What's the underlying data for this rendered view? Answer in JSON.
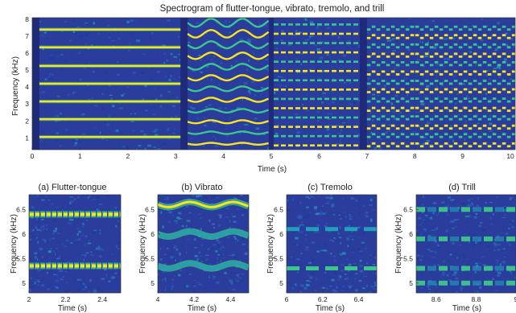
{
  "chart_data": [
    {
      "type": "heatmap",
      "title": "Spectrogram of flutter-tongue, vibrato, tremolo, and trill",
      "xlabel": "Time (s)",
      "ylabel": "Frequency (kHz)",
      "xlim": [
        0,
        10.1
      ],
      "ylim": [
        0.3,
        8.1
      ],
      "xticks": [
        0,
        1,
        2,
        3,
        4,
        5,
        6,
        7,
        8,
        9,
        10
      ],
      "yticks": [
        1,
        2,
        3,
        4,
        5,
        6,
        7,
        8
      ],
      "segments": [
        {
          "technique": "flutter-tongue",
          "t_start": 0.15,
          "t_end": 3.1,
          "harmonics_khz": [
            1.05,
            2.1,
            3.15,
            4.2,
            5.25,
            6.35,
            7.4
          ]
        },
        {
          "technique": "vibrato",
          "t_start": 3.25,
          "t_end": 4.95,
          "harmonics_khz": [
            0.65,
            1.3,
            1.95,
            2.6,
            3.25,
            3.9,
            4.55,
            5.2,
            5.85,
            6.5,
            7.15,
            7.8
          ]
        },
        {
          "technique": "tremolo",
          "t_start": 5.05,
          "t_end": 6.85,
          "harmonics_khz": [
            0.55,
            1.1,
            1.65,
            2.2,
            2.75,
            3.3,
            3.85,
            4.4,
            4.95,
            5.5,
            6.05,
            6.6,
            7.15,
            7.7
          ]
        },
        {
          "technique": "trill",
          "t_start": 7.0,
          "t_end": 10.1,
          "harmonics_khz": [
            0.5,
            1.05,
            1.55,
            2.1,
            2.6,
            3.15,
            3.7,
            4.2,
            4.75,
            5.3,
            5.8,
            6.35,
            6.9,
            7.4
          ]
        }
      ]
    },
    {
      "type": "heatmap",
      "title": "(a) Flutter-tongue",
      "xlabel": "Time (s)",
      "ylabel": "Frequency (kHz)",
      "xlim": [
        2.0,
        2.5
      ],
      "ylim": [
        4.8,
        6.8
      ],
      "xticks": [
        2,
        2.2,
        2.4
      ],
      "xticklabels": [
        "2",
        "2.2",
        "2.4"
      ],
      "yticks": [
        5,
        5.5,
        6,
        6.5
      ],
      "yticklabels": [
        "5",
        "5.5",
        "6",
        "6.5"
      ],
      "bands_khz": [
        5.35,
        6.4
      ]
    },
    {
      "type": "heatmap",
      "title": "(b) Vibrato",
      "xlabel": "Time (s)",
      "ylabel": "Frequency (kHz)",
      "xlim": [
        4.0,
        4.5
      ],
      "ylim": [
        4.8,
        6.8
      ],
      "xticks": [
        4,
        4.2,
        4.4
      ],
      "xticklabels": [
        "4",
        "4.2",
        "4.4"
      ],
      "yticks": [
        5,
        5.5,
        6,
        6.5
      ],
      "yticklabels": [
        "5",
        "5.5",
        "6",
        "6.5"
      ],
      "bands_khz": [
        5.35,
        6.0,
        6.6
      ]
    },
    {
      "type": "heatmap",
      "title": "(c) Tremolo",
      "xlabel": "Time (s)",
      "ylabel": "Frequency (kHz)",
      "xlim": [
        6.0,
        6.5
      ],
      "ylim": [
        4.8,
        6.8
      ],
      "xticks": [
        6,
        6.2,
        6.4
      ],
      "xticklabels": [
        "6",
        "6.2",
        "6.4"
      ],
      "yticks": [
        5,
        5.5,
        6,
        6.5
      ],
      "yticklabels": [
        "5",
        "5.5",
        "6",
        "6.5"
      ],
      "bands_khz": [
        5.3,
        6.1
      ]
    },
    {
      "type": "heatmap",
      "title": "(d) Trill",
      "xlabel": "Time (s)",
      "ylabel": "Frequency (kHz)",
      "xlim": [
        8.5,
        9.0
      ],
      "ylim": [
        4.8,
        6.8
      ],
      "xticks": [
        8.6,
        8.8,
        9
      ],
      "xticklabels": [
        "8.6",
        "8.8",
        "9"
      ],
      "yticks": [
        5,
        5.5,
        6,
        6.5
      ],
      "yticklabels": [
        "5",
        "5.5",
        "6",
        "6.5"
      ],
      "bands_khz": [
        5.0,
        5.3,
        5.9,
        6.5
      ]
    }
  ],
  "colors": {
    "background": "#2a3d9c",
    "noise_light": "#2f62c6",
    "mid": "#21a0b8",
    "high": "#3cc68a",
    "peak": "#f9e51e",
    "gap": "#1f2a7a"
  }
}
